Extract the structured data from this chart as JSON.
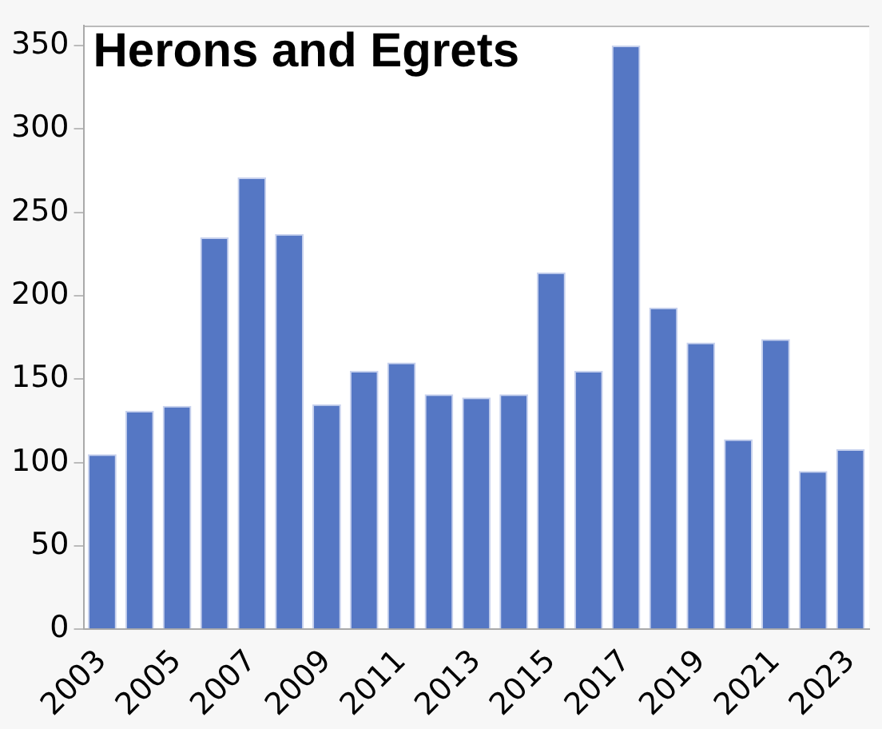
{
  "chart_data": {
    "type": "bar",
    "title": "Herons and Egrets",
    "categories": [
      "2003",
      null,
      "2005",
      null,
      "2007",
      null,
      "2009",
      null,
      "2011",
      null,
      "2013",
      null,
      "2015",
      null,
      "2017",
      null,
      "2019",
      null,
      "2021",
      null,
      "2023"
    ],
    "values": [
      105,
      131,
      134,
      235,
      271,
      237,
      135,
      155,
      160,
      141,
      139,
      141,
      214,
      155,
      350,
      193,
      172,
      114,
      174,
      95,
      108
    ],
    "color": "#5577c4",
    "ylim": [
      0,
      362
    ],
    "yticks": [
      0,
      50,
      100,
      150,
      200,
      250,
      300,
      350
    ],
    "grid": false
  }
}
